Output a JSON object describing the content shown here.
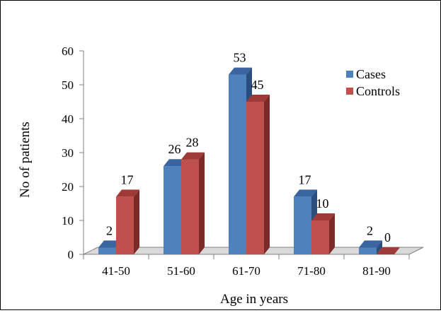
{
  "chart_data": {
    "type": "bar",
    "categories": [
      "41-50",
      "51-60",
      "61-70",
      "71-80",
      "81-90"
    ],
    "series": [
      {
        "name": "Cases",
        "values": [
          2,
          26,
          53,
          17,
          2
        ]
      },
      {
        "name": "Controls",
        "values": [
          17,
          28,
          45,
          10,
          0
        ]
      }
    ],
    "xlabel": "Age in years",
    "ylabel": "No of patients",
    "ylim": [
      0,
      60
    ],
    "yticks": [
      0,
      10,
      20,
      30,
      40,
      50,
      60
    ],
    "legend_position": "right",
    "bar_style": "3d",
    "colors": {
      "Cases": {
        "front": "#4F81BD",
        "top": "#3A65A0",
        "side": "#2C4E7E"
      },
      "Controls": {
        "front": "#C0504D",
        "top": "#9E3A37",
        "side": "#7A2B29"
      }
    },
    "floor_color": "#D9D9D9",
    "axis_color": "#808080"
  }
}
